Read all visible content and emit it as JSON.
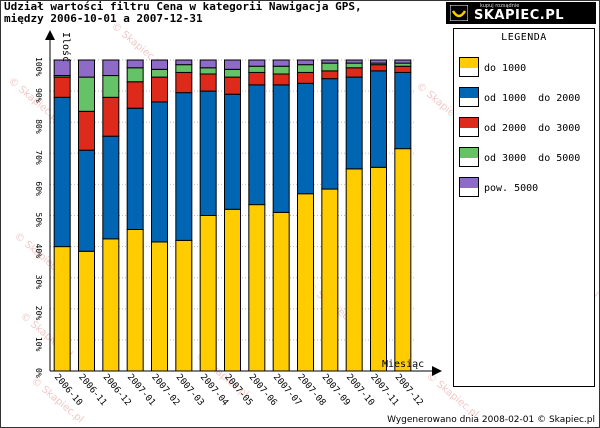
{
  "header": {
    "title_line1": "Udział wartości filtru Cena w kategorii Nawigacja GPS,",
    "title_line2": "między 2006-10-01 a 2007-12-31",
    "logo_tagline": "kupuj rozsądnie",
    "logo_name": "SKAPIEC.PL"
  },
  "watermark_text": "© Skapiec.pl",
  "footer": "Wygenerowano dnia 2008-02-01 © Skapiec.pl",
  "colors": {
    "do_1000": "#FFCC00",
    "od_1000_do_2000": "#0066B3",
    "od_2000_do_3000": "#DD2A1B",
    "od_3000_do_5000": "#66C266",
    "pow_5000": "#8E6BC6",
    "axis": "#000000",
    "grid": "#bdbdbd"
  },
  "legend": {
    "title": "LEGENDA",
    "items": [
      "do 1000",
      "od 1000  do 2000",
      "od 2000  do 3000",
      "od 3000  do 5000",
      "pow. 5000"
    ]
  },
  "chart_data": {
    "type": "bar",
    "stacked": true,
    "xlabel": "Miesiąc",
    "ylabel": "Ilość",
    "ylim": [
      0,
      100
    ],
    "y_ticks": [
      "0%",
      "10%",
      "20%",
      "30%",
      "40%",
      "50%",
      "60%",
      "70%",
      "80%",
      "90%",
      "100%"
    ],
    "grid": true,
    "legend_position": "right",
    "categories": [
      "2006-10",
      "2006-11",
      "2006-12",
      "2007-01",
      "2007-02",
      "2007-03",
      "2007-04",
      "2007-05",
      "2007-06",
      "2007-07",
      "2007-08",
      "2007-09",
      "2007-10",
      "2007-11",
      "2007-12"
    ],
    "series": [
      {
        "name": "do 1000",
        "values": [
          40,
          38.5,
          42.5,
          45.5,
          41.5,
          42,
          50,
          52,
          53.5,
          51,
          57,
          58.5,
          65,
          65.5,
          71.5
        ]
      },
      {
        "name": "od 1000  do 2000",
        "values": [
          48,
          32.5,
          33,
          39,
          45,
          47.5,
          40,
          37,
          38.5,
          41,
          35.5,
          35.5,
          29.5,
          31,
          24.5
        ]
      },
      {
        "name": "od 2000  do 3000",
        "values": [
          6.5,
          12.5,
          12.5,
          8.5,
          8,
          6.5,
          5.5,
          5.5,
          4,
          3.5,
          3.5,
          2.5,
          3,
          2,
          2
        ]
      },
      {
        "name": "od 3000  do 5000",
        "values": [
          0.5,
          11,
          7,
          4.5,
          2.5,
          2.5,
          2,
          2.5,
          2,
          2.5,
          2.5,
          2.5,
          1.5,
          0.5,
          1
        ]
      },
      {
        "name": "pow. 5000",
        "values": [
          5,
          5.5,
          5,
          2.5,
          3,
          1.5,
          2.5,
          3,
          2,
          2,
          1.5,
          1,
          1,
          1,
          1
        ]
      }
    ]
  }
}
